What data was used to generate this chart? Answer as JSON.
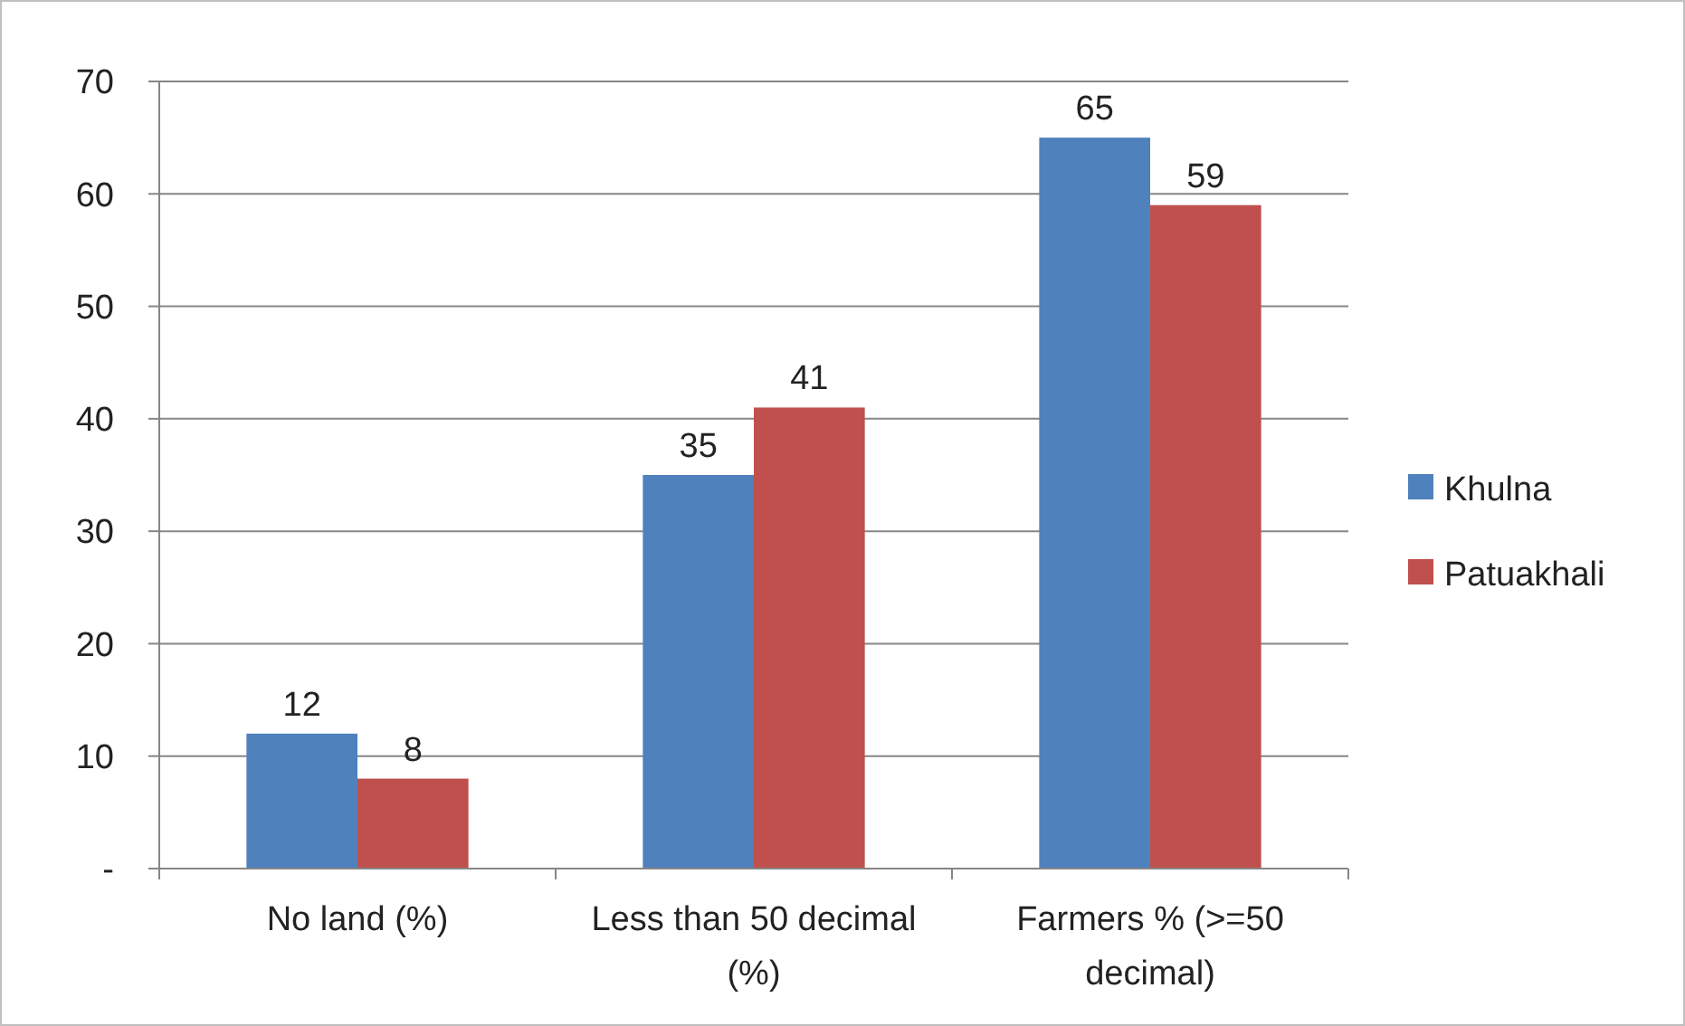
{
  "chart_data": {
    "type": "bar",
    "categories": [
      "No land (%)",
      "Less than 50 decimal (%)",
      "Farmers % (>=50 decimal)"
    ],
    "series": [
      {
        "name": "Khulna",
        "color": "#4f81bd",
        "values": [
          12,
          35,
          65
        ]
      },
      {
        "name": "Patuakhali",
        "color": "#c0504d",
        "values": [
          8,
          41,
          59
        ]
      }
    ],
    "ylim": [
      0,
      70
    ],
    "yticks": [
      {
        "value": 0,
        "label": "-"
      },
      10,
      20,
      30,
      40,
      50,
      60,
      70
    ],
    "grid": "y",
    "legend": "right",
    "data_labels": true
  }
}
